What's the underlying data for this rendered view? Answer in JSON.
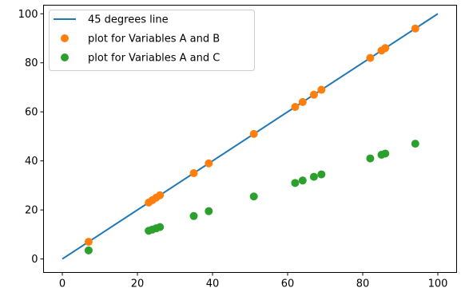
{
  "chart_data": {
    "type": "scatter",
    "xlim": [
      -5,
      105
    ],
    "ylim": [
      -5.5,
      103.5
    ],
    "x_ticks": [
      0,
      20,
      40,
      60,
      80,
      100
    ],
    "y_ticks": [
      0,
      20,
      40,
      60,
      80,
      100
    ],
    "grid": false,
    "legend_position": "top-left",
    "series": [
      {
        "name": "45 degrees line",
        "kind": "line",
        "color": "#1f77b4",
        "points": [
          [
            0,
            0
          ],
          [
            100,
            100
          ]
        ]
      },
      {
        "name": "plot for Variables A and B",
        "kind": "scatter",
        "color": "#ff7f0e",
        "points": [
          [
            7,
            7
          ],
          [
            23,
            23
          ],
          [
            24,
            24
          ],
          [
            25,
            25
          ],
          [
            26,
            26
          ],
          [
            35,
            35
          ],
          [
            39,
            39
          ],
          [
            51,
            51
          ],
          [
            62,
            62
          ],
          [
            64,
            64
          ],
          [
            67,
            67
          ],
          [
            69,
            69
          ],
          [
            82,
            82
          ],
          [
            85,
            85
          ],
          [
            86,
            86
          ],
          [
            94,
            94
          ]
        ]
      },
      {
        "name": "plot for Variables A and C",
        "kind": "scatter",
        "color": "#2ca02c",
        "points": [
          [
            7,
            3.5
          ],
          [
            23,
            11.5
          ],
          [
            24,
            12
          ],
          [
            25,
            12.5
          ],
          [
            26,
            13
          ],
          [
            35,
            17.5
          ],
          [
            39,
            19.5
          ],
          [
            51,
            25.5
          ],
          [
            62,
            31
          ],
          [
            64,
            32
          ],
          [
            67,
            33.5
          ],
          [
            69,
            34.5
          ],
          [
            82,
            41
          ],
          [
            85,
            42.5
          ],
          [
            86,
            43
          ],
          [
            94,
            47
          ]
        ]
      }
    ]
  }
}
